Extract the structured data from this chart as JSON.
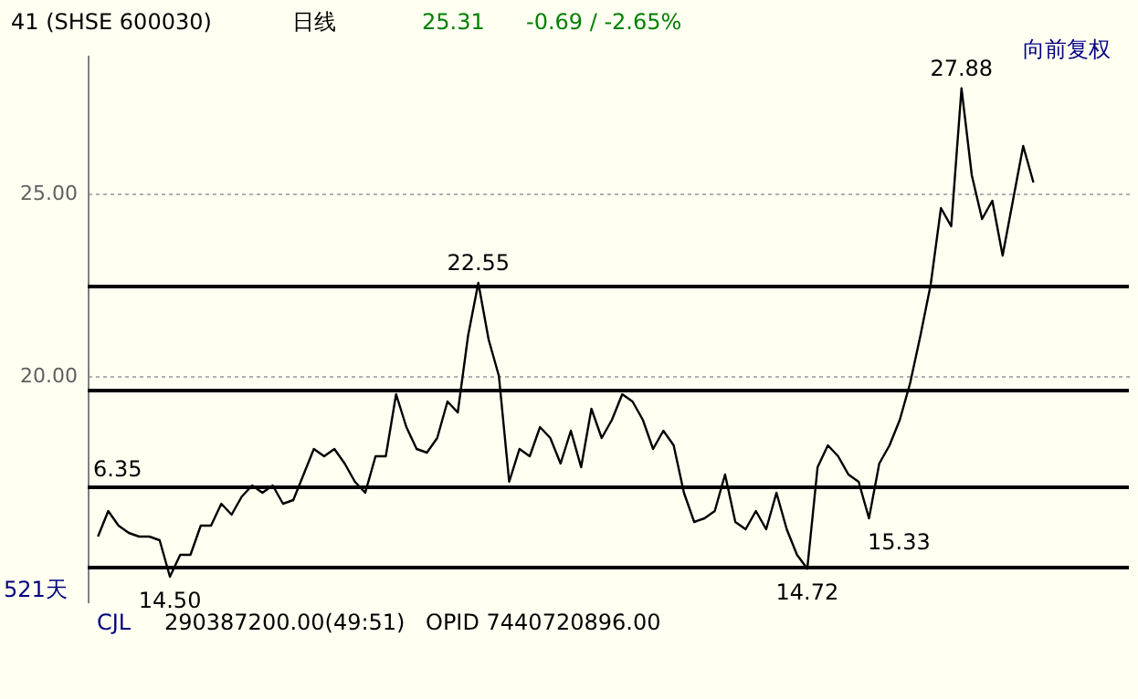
{
  "chart_data": {
    "type": "line",
    "title": "41 (SHSE 600030)",
    "categories": [
      null,
      null,
      null,
      null,
      null,
      null,
      null,
      null,
      null,
      null,
      null,
      null,
      null,
      null,
      null,
      null,
      null,
      null,
      null,
      null,
      null,
      null,
      null,
      null,
      null,
      null,
      null,
      null,
      null,
      null,
      null,
      null,
      null,
      null,
      null,
      null,
      null,
      null,
      null,
      null,
      null,
      null,
      null,
      null,
      null,
      null,
      null,
      null,
      null,
      null,
      null,
      null,
      null,
      null,
      null,
      null,
      null,
      null,
      null,
      null,
      null,
      null,
      null,
      null,
      null,
      null,
      null,
      null,
      null,
      null,
      null,
      null,
      null,
      null,
      null,
      null,
      null,
      null,
      null,
      null,
      null,
      null,
      null,
      null,
      null,
      null,
      null,
      null,
      null,
      null,
      null,
      null
    ],
    "series": [
      {
        "color": "#000000",
        "values": [
          15.6,
          16.3,
          15.9,
          15.7,
          15.6,
          15.6,
          15.5,
          14.5,
          15.1,
          15.1,
          15.9,
          15.9,
          16.5,
          16.2,
          16.7,
          17.0,
          16.8,
          17.0,
          16.5,
          16.6,
          17.3,
          18.0,
          17.8,
          18.0,
          17.6,
          17.1,
          16.8,
          17.8,
          17.8,
          19.5,
          18.6,
          18.0,
          17.9,
          18.3,
          19.3,
          19.0,
          21.1,
          22.55,
          21.0,
          20.0,
          17.1,
          18.0,
          17.8,
          18.6,
          18.3,
          17.6,
          18.5,
          17.5,
          19.1,
          18.3,
          18.8,
          19.5,
          19.3,
          18.8,
          18.0,
          18.5,
          18.1,
          16.8,
          16.0,
          16.1,
          16.3,
          17.3,
          16.0,
          15.8,
          16.3,
          15.8,
          16.8,
          15.8,
          15.1,
          14.72,
          17.5,
          18.1,
          17.8,
          17.3,
          17.1,
          16.1,
          17.6,
          18.1,
          18.8,
          19.8,
          21.1,
          22.5,
          24.6,
          24.1,
          27.88,
          25.5,
          24.3,
          24.8,
          23.3,
          24.8,
          26.3,
          25.3
        ]
      }
    ],
    "ylim": [
      13.8,
      28.8
    ],
    "yticks": [
      {
        "value": 20,
        "label": "20.00"
      },
      {
        "value": 25,
        "label": "25.00"
      }
    ],
    "tick_labels": "y",
    "grid": "y",
    "line_style": "solid",
    "marker": "none",
    "ref_lines": [
      {
        "axis": "y",
        "value": 22.45,
        "label": null,
        "color": "#000000"
      },
      {
        "axis": "y",
        "value": 19.6,
        "label": null,
        "color": "#000000"
      },
      {
        "axis": "y",
        "value": 16.95,
        "label": null,
        "color": "#000000"
      },
      {
        "axis": "y",
        "value": 14.75,
        "label": null,
        "color": "#000000"
      }
    ],
    "annotations": [
      {
        "text": "27.88",
        "y": 27.88
      },
      {
        "text": "22.55",
        "y": 22.55
      },
      {
        "text": "14.50",
        "y": 14.5
      },
      {
        "text": "14.72",
        "y": 14.72
      },
      "日线",
      "25.31",
      "-0.69 / -2.65%",
      "向前复权",
      "521天",
      "15.33",
      "CJL",
      "290387200.00(49:51)",
      "OPID 7440720896.00",
      "6.35"
    ]
  }
}
